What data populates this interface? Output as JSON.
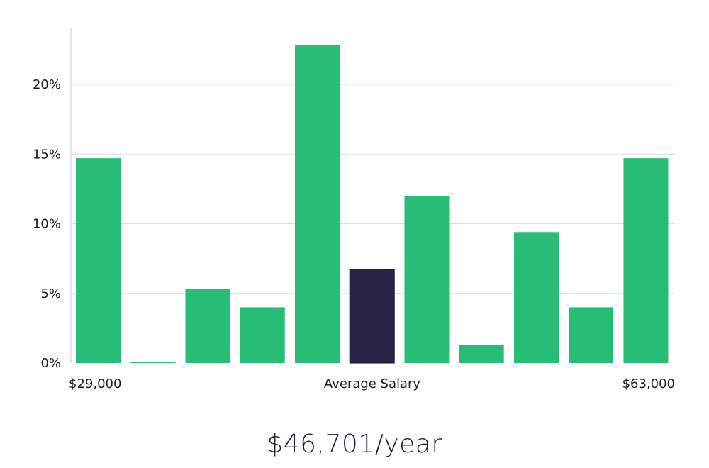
{
  "chart_data": {
    "type": "bar",
    "title": "",
    "xlabel": "",
    "ylabel": "",
    "ylim": [
      0,
      0.24
    ],
    "y_ticks": [
      0,
      0.05,
      0.1,
      0.15,
      0.2
    ],
    "y_tick_labels": [
      "0%",
      "5%",
      "10%",
      "15%",
      "20%"
    ],
    "grid": true,
    "x_axis_labels": {
      "left": "$29,000",
      "center": "Average Salary",
      "right": "$63,000"
    },
    "values": [
      0.147,
      0.001,
      0.053,
      0.04,
      0.228,
      0.067,
      0.12,
      0.013,
      0.094,
      0.04,
      0.147
    ],
    "highlight_index": 5,
    "colors": {
      "bar": "#27bd76",
      "highlight": "#272546",
      "highlight_border": "#16143a",
      "grid": "#dddddd",
      "axis": "#cccccc"
    }
  },
  "salary": {
    "display": "$46,701/year"
  }
}
